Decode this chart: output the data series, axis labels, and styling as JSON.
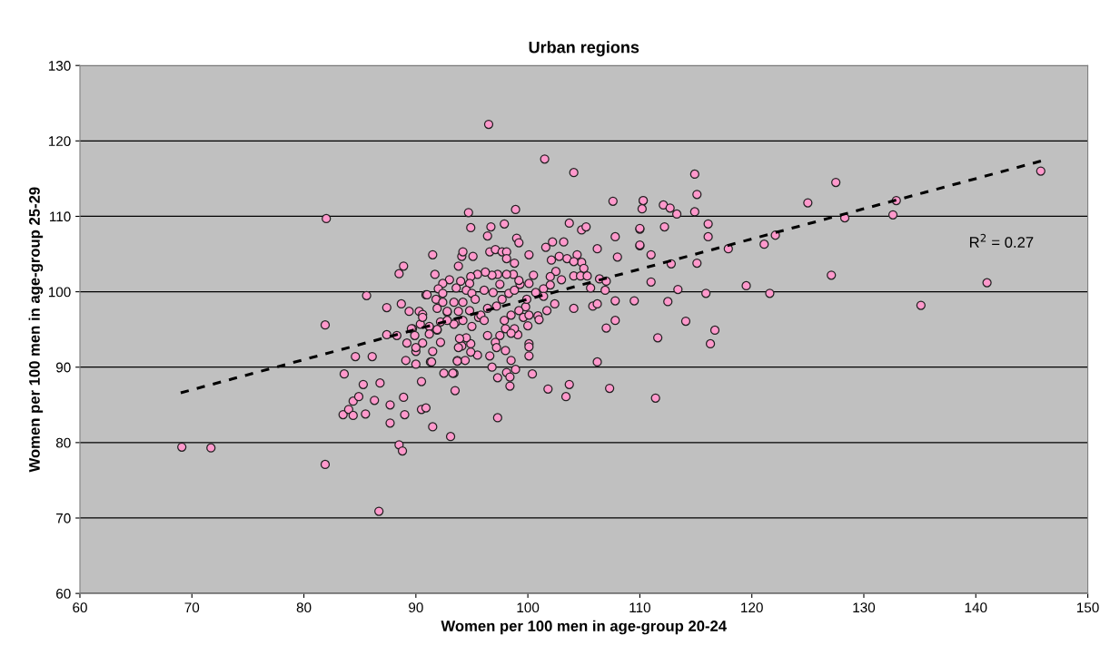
{
  "chart_data": {
    "type": "scatter",
    "title": "Urban regions",
    "xlabel": "Women per 100 men in age-group 20-24",
    "ylabel": "Women per 100 men in age-group 25-29",
    "xlim": [
      60,
      150
    ],
    "xticks": [
      60,
      70,
      80,
      90,
      100,
      110,
      120,
      130,
      140,
      150
    ],
    "ylim": [
      60,
      130
    ],
    "yticks": [
      60,
      70,
      80,
      90,
      100,
      110,
      120,
      130
    ],
    "grid": "y",
    "marker": "circle",
    "annotations": [
      "R$^{2}$ = 0.27"
    ],
    "series": [
      {
        "color": "#ff99cc",
        "x": [
          69.1,
          71.7,
          82.0,
          81.9,
          81.9,
          86.7,
          96.5,
          101.5,
          104.1,
          145.8,
          114.9,
          115.1,
          114.9,
          127.5,
          125.0,
          132.9,
          132.6,
          128.3,
          122.1,
          121.1,
          117.9,
          116.1,
          116.1,
          112.8,
          115.1,
          111.0,
          127.1,
          141.0,
          119.5,
          121.6,
          115.9,
          113.4,
          135.1,
          114.1,
          116.7,
          116.3,
          111.6,
          111.4,
          112.5,
          111.0,
          110.3,
          112.1,
          112.7,
          113.3,
          110.0,
          110.0,
          112.2,
          85.6,
          87.4,
          88.7,
          88.5,
          88.9,
          91.5,
          83.6,
          84.6,
          86.1,
          85.3,
          86.8,
          84.4,
          84.9,
          83.5,
          84.0,
          84.4,
          85.5,
          86.3,
          87.7,
          88.9,
          89.0,
          87.7,
          88.5,
          88.8,
          90.5,
          90.5,
          90.9,
          91.5,
          93.1,
          92.5,
          93.4,
          93.5,
          87.4,
          88.3,
          89.2,
          90.0,
          89.1,
          90.0,
          91.3,
          92.2,
          91.5,
          93.7,
          94.4,
          89.7,
          90.4,
          91.3,
          91.9,
          92.2,
          89.4,
          90.3,
          90.6,
          90.9,
          91.8,
          92.8,
          93.6,
          94.7,
          98.9,
          94.9,
          96.7,
          97.9,
          96.4,
          99.0,
          99.2,
          101.6,
          102.2,
          103.2,
          103.7,
          104.8,
          105.2,
          107.6,
          110.3,
          110.2,
          110.0,
          107.8,
          106.2,
          108.0,
          110.0,
          91.7,
          94.1,
          94.2,
          95.1,
          93.8,
          96.6,
          97.1,
          97.7,
          98.1,
          98.1,
          98.8,
          100.1,
          102.1,
          102.8,
          103.5,
          104.4,
          104.8,
          105.0,
          104.1,
          102.5,
          100.5,
          102.0,
          103.0,
          104.1,
          104.7,
          105.3,
          105.6,
          106.4,
          107.0,
          106.9,
          107.8,
          109.5,
          105.8,
          106.2,
          104.1,
          107.0,
          107.8,
          106.2,
          107.3,
          101.8,
          103.4,
          103.7,
          102.4,
          101.7,
          100.9,
          101.0,
          100.1,
          100.1,
          100.1,
          100.4,
          98.5,
          98.9,
          98.1,
          98.4,
          98.4,
          97.3,
          96.8,
          97.3,
          96.6,
          98.0,
          95.5,
          93.7,
          93.3,
          94.9,
          94.9,
          94.1,
          94.5,
          96.4,
          97.5,
          97.1,
          97.2,
          99.1,
          98.8,
          100.0,
          99.6,
          99.8,
          99.9,
          100.7,
          101.4,
          101.4,
          102.0,
          100.1,
          100.1,
          99.2,
          98.5,
          97.9,
          98.0,
          98.5,
          95.6,
          96.4,
          97.2,
          97.7,
          98.3,
          98.8,
          99.3,
          99.2,
          98.7,
          98.1,
          97.3,
          96.8,
          96.2,
          95.5,
          94.9,
          94.8,
          94.0,
          93.0,
          92.4,
          92.0,
          92.4,
          93.6,
          94.5,
          95.0,
          96.1,
          96.9,
          97.5,
          95.3,
          94.2,
          93.4,
          92.4,
          91.0,
          91.9,
          92.8,
          93.8,
          94.8,
          95.8,
          96.1,
          95.0,
          94.2,
          93.4,
          92.8,
          91.9,
          91.2,
          90.6,
          89.6,
          89.9,
          90.6,
          91.2,
          90.0,
          91.4,
          93.9,
          93.8
        ],
        "values": [
          79.4,
          79.3,
          109.7,
          95.6,
          77.1,
          70.9,
          122.2,
          117.6,
          115.8,
          116.0,
          115.6,
          112.9,
          110.6,
          114.5,
          111.8,
          112.1,
          110.2,
          109.8,
          107.5,
          106.3,
          105.7,
          109.0,
          107.3,
          103.7,
          103.8,
          104.9,
          102.2,
          101.2,
          100.8,
          99.8,
          99.8,
          100.3,
          98.2,
          96.1,
          94.9,
          93.1,
          93.9,
          85.9,
          98.7,
          101.3,
          112.1,
          111.5,
          111.1,
          110.3,
          108.3,
          106.1,
          108.6,
          99.5,
          97.9,
          98.4,
          102.4,
          103.4,
          104.9,
          89.1,
          91.4,
          91.4,
          87.7,
          87.9,
          85.5,
          86.1,
          83.7,
          84.4,
          83.6,
          83.8,
          85.6,
          85.0,
          86.0,
          83.7,
          82.6,
          79.7,
          78.9,
          88.1,
          84.4,
          84.6,
          82.1,
          80.8,
          89.2,
          89.2,
          86.9,
          94.3,
          94.2,
          93.2,
          92.1,
          90.9,
          90.4,
          90.7,
          93.3,
          92.1,
          90.9,
          90.9,
          95.1,
          95.7,
          95.1,
          94.9,
          96.0,
          97.4,
          97.4,
          97.0,
          99.6,
          99.0,
          97.3,
          96.0,
          110.5,
          110.9,
          108.5,
          108.6,
          109.0,
          107.4,
          107.1,
          106.5,
          105.9,
          106.6,
          106.6,
          109.1,
          108.2,
          108.6,
          112.0,
          112.1,
          111.0,
          108.4,
          107.3,
          105.7,
          104.6,
          106.2,
          102.3,
          104.7,
          105.3,
          104.7,
          103.4,
          105.3,
          105.6,
          105.3,
          105.3,
          104.4,
          103.8,
          104.9,
          104.2,
          104.7,
          104.4,
          104.9,
          103.9,
          103.1,
          104.0,
          102.7,
          102.2,
          102.0,
          101.6,
          102.1,
          102.1,
          102.1,
          100.5,
          101.7,
          101.4,
          100.2,
          98.8,
          98.8,
          98.1,
          98.4,
          97.8,
          95.2,
          96.2,
          90.7,
          87.2,
          87.1,
          86.1,
          87.7,
          98.4,
          97.5,
          96.8,
          96.3,
          93.1,
          92.7,
          91.5,
          89.1,
          90.9,
          89.7,
          89.3,
          88.7,
          87.5,
          88.6,
          90.0,
          83.3,
          91.5,
          92.2,
          91.6,
          90.8,
          89.2,
          92.0,
          93.1,
          92.8,
          93.9,
          94.2,
          94.2,
          93.3,
          92.6,
          94.3,
          95.1,
          95.5,
          96.6,
          98.0,
          99.0,
          99.9,
          100.4,
          99.4,
          100.9,
          101.1,
          96.9,
          97.5,
          96.9,
          96.2,
          95.1,
          94.5,
          96.6,
          97.8,
          98.1,
          99.0,
          99.8,
          100.2,
          101.0,
          101.5,
          102.3,
          102.3,
          102.3,
          102.2,
          102.6,
          102.3,
          102.0,
          101.1,
          101.4,
          101.6,
          101.1,
          100.4,
          99.8,
          100.5,
          100.2,
          99.8,
          100.2,
          99.9,
          101.0,
          99.0,
          98.6,
          98.6,
          98.6,
          99.6,
          97.8,
          97.4,
          97.4,
          97.5,
          96.9,
          96.2,
          95.4,
          96.2,
          95.7,
          96.2,
          95.0,
          95.4,
          96.6,
          95.1,
          94.2,
          93.2,
          94.4,
          92.6,
          90.7,
          93.8,
          92.6
        ]
      },
      {
        "type": "line",
        "color": "#000000",
        "line_style": "dashed",
        "marker": "none",
        "x": [
          69.0,
          146.0
        ],
        "values": [
          86.6,
          117.4
        ]
      }
    ]
  }
}
